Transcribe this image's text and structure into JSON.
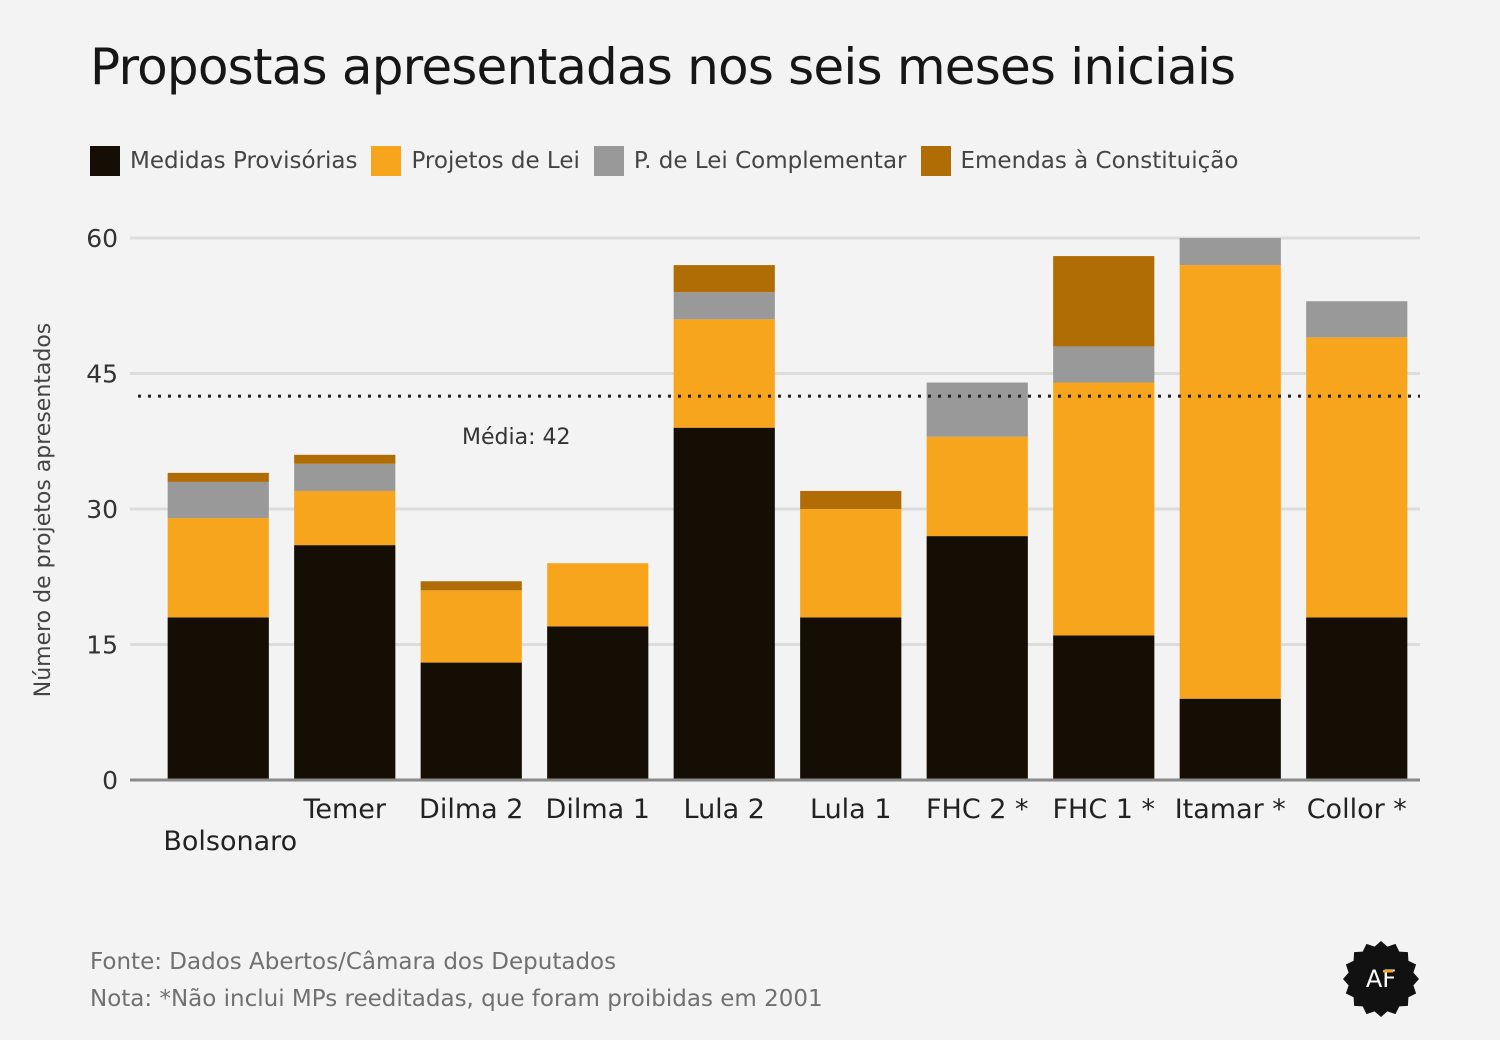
{
  "title": "Propostas apresentadas nos seis meses iniciais",
  "legend": [
    {
      "label": "Medidas Provisórias",
      "color": "#150e05"
    },
    {
      "label": "Projetos de Lei",
      "color": "#f8a51e"
    },
    {
      "label": "P. de Lei Complementar",
      "color": "#999999"
    },
    {
      "label": "Emendas à Constituição",
      "color": "#b06d05"
    }
  ],
  "chart_data": {
    "type": "bar",
    "stacked": true,
    "ylabel": "Número de projetos apresentados",
    "ylim": [
      0,
      60
    ],
    "yticks": [
      0,
      15,
      30,
      45,
      60
    ],
    "grid": true,
    "legend_position": "top-left",
    "categories": [
      "Bolsonaro",
      "Temer",
      "Dilma 2",
      "Dilma 1",
      "Lula 2",
      "Lula 1",
      "FHC 2 *",
      "FHC 1 *",
      "Itamar *",
      "Collor *"
    ],
    "series": [
      {
        "name": "Medidas Provisórias",
        "values": [
          18,
          26,
          13,
          17,
          39,
          18,
          27,
          16,
          9,
          18
        ]
      },
      {
        "name": "Projetos de Lei",
        "values": [
          11,
          6,
          8,
          7,
          12,
          12,
          11,
          28,
          48,
          31
        ]
      },
      {
        "name": "P. de Lei Complementar",
        "values": [
          4,
          3,
          0,
          0,
          3,
          0,
          6,
          4,
          3,
          4
        ]
      },
      {
        "name": "Emendas à Constituição",
        "values": [
          1,
          1,
          1,
          0,
          3,
          2,
          0,
          10,
          0,
          0
        ]
      }
    ],
    "reference_line": {
      "value": 42.5,
      "label": "Média: 42"
    }
  },
  "footer": {
    "source": "Fonte: Dados Abertos/Câmara dos Deputados",
    "note": "Nota: *Não inclui MPs reeditadas, que foram proibidas em 2001"
  },
  "logo": {
    "text": "AF"
  }
}
